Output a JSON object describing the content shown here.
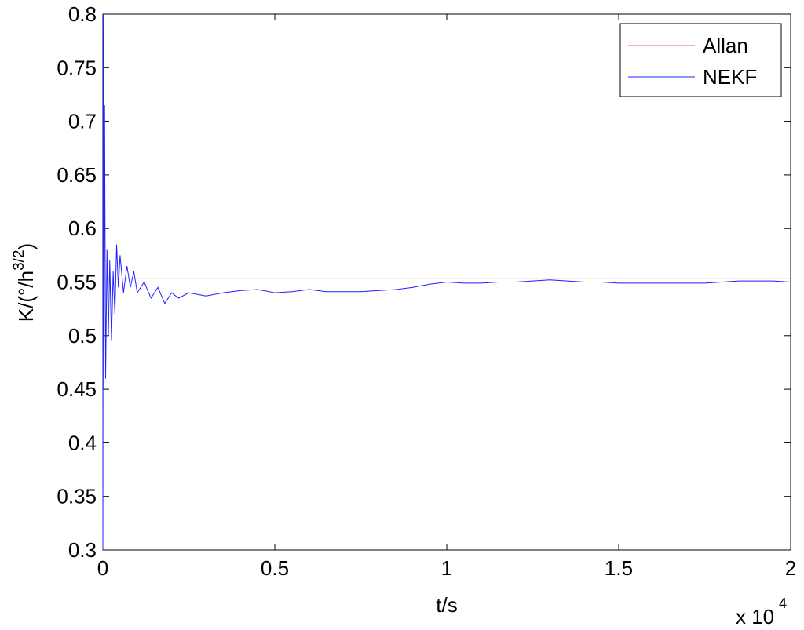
{
  "chart_data": {
    "type": "line",
    "x_label": "t/s",
    "x_multiplier": {
      "base": "x 10",
      "exponent": "4"
    },
    "y_label": {
      "prefix": "K/(°/h",
      "superscript": "3/2",
      "suffix": ")"
    },
    "xlim": [
      0,
      2
    ],
    "xticks": [
      0,
      0.5,
      1,
      1.5,
      2
    ],
    "ylim": [
      0.3,
      0.8
    ],
    "yticks": [
      0.3,
      0.35,
      0.4,
      0.45,
      0.5,
      0.55,
      0.6,
      0.65,
      0.7,
      0.75,
      0.8
    ],
    "grid": false,
    "legend": "upper right",
    "series": [
      {
        "name": "Allan",
        "color": "#ff5a5a",
        "x": [
          0,
          2
        ],
        "values": [
          0.553,
          0.553
        ]
      },
      {
        "name": "NEKF",
        "color": "#2020ff",
        "x": [
          0,
          0.001,
          0.003,
          0.005,
          0.008,
          0.012,
          0.016,
          0.02,
          0.025,
          0.03,
          0.035,
          0.04,
          0.045,
          0.05,
          0.06,
          0.07,
          0.08,
          0.09,
          0.1,
          0.12,
          0.14,
          0.16,
          0.18,
          0.2,
          0.22,
          0.25,
          0.3,
          0.35,
          0.4,
          0.45,
          0.5,
          0.55,
          0.6,
          0.65,
          0.7,
          0.75,
          0.8,
          0.85,
          0.9,
          0.95,
          1.0,
          1.05,
          1.1,
          1.15,
          1.2,
          1.25,
          1.3,
          1.35,
          1.4,
          1.45,
          1.5,
          1.55,
          1.6,
          1.65,
          1.7,
          1.75,
          1.8,
          1.85,
          1.9,
          1.95,
          2.0
        ],
        "values": [
          0.3,
          0.8,
          0.45,
          0.715,
          0.46,
          0.58,
          0.5,
          0.57,
          0.495,
          0.56,
          0.52,
          0.585,
          0.545,
          0.575,
          0.54,
          0.565,
          0.545,
          0.56,
          0.54,
          0.55,
          0.535,
          0.545,
          0.53,
          0.54,
          0.535,
          0.54,
          0.537,
          0.54,
          0.542,
          0.543,
          0.54,
          0.541,
          0.543,
          0.541,
          0.541,
          0.541,
          0.542,
          0.543,
          0.545,
          0.548,
          0.55,
          0.549,
          0.549,
          0.55,
          0.55,
          0.551,
          0.552,
          0.551,
          0.55,
          0.55,
          0.549,
          0.549,
          0.549,
          0.549,
          0.549,
          0.549,
          0.55,
          0.551,
          0.551,
          0.551,
          0.55
        ]
      }
    ]
  }
}
